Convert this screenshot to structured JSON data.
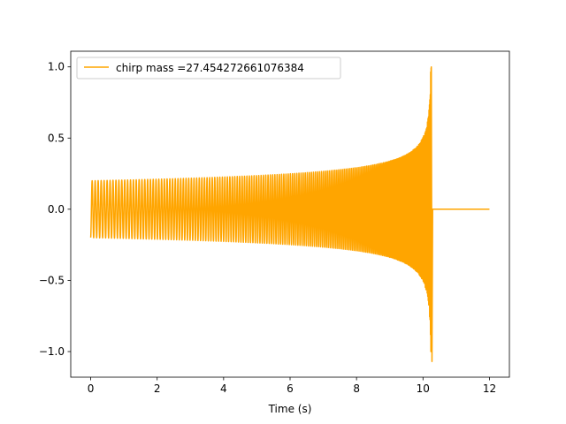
{
  "chart_data": {
    "type": "line",
    "title": "",
    "xlabel": "Time (s)",
    "ylabel": "",
    "xlim": [
      -0.6,
      12.6
    ],
    "ylim": [
      -1.18,
      1.11
    ],
    "xticks": [
      0,
      2,
      4,
      6,
      8,
      10,
      12
    ],
    "xtick_labels": [
      "0",
      "2",
      "4",
      "6",
      "8",
      "10",
      "12"
    ],
    "yticks": [
      -1.0,
      -0.5,
      0.0,
      0.5,
      1.0
    ],
    "ytick_labels": [
      "−1.0",
      "−0.5",
      "0.0",
      "0.5",
      "1.0"
    ],
    "grid": false,
    "legend": {
      "position": "top-left",
      "entries": [
        "chirp mass =27.454272661076384"
      ]
    },
    "series": [
      {
        "name": "chirp mass =27.454272661076384",
        "color": "#ffa500",
        "signal": {
          "start_time": 0.0,
          "merger_time": 10.25,
          "end_time": 12.0,
          "initial_amplitude": 0.2,
          "peak_amplitude": 1.0,
          "min_amplitude": -1.07,
          "post_merger_value": 0.0
        }
      }
    ]
  }
}
